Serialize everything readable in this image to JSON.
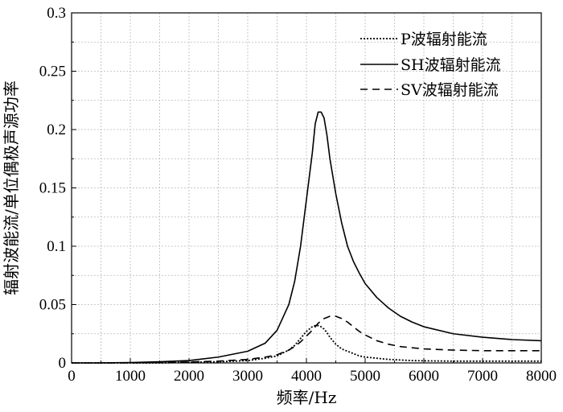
{
  "chart_data": {
    "type": "line",
    "title": "",
    "xlabel": "频率/Hz",
    "ylabel": "辐射波能流/单位偶极声源功率",
    "xlim": [
      0,
      8000
    ],
    "ylim": [
      0,
      0.3
    ],
    "x_ticks": [
      0,
      1000,
      2000,
      3000,
      4000,
      5000,
      6000,
      7000,
      8000
    ],
    "x_tick_labels": [
      "0",
      "1000",
      "2000",
      "3000",
      "4000",
      "5000",
      "6000",
      "7000",
      "8000"
    ],
    "y_ticks": [
      0,
      0.05,
      0.1,
      0.15,
      0.2,
      0.25,
      0.3
    ],
    "y_tick_labels": [
      "0",
      "0.05",
      "0.1",
      "0.15",
      "0.2",
      "0.25",
      "0.3"
    ],
    "grid": true,
    "legend_position": "top-right",
    "x": [
      0,
      500,
      1000,
      1500,
      2000,
      2500,
      3000,
      3300,
      3500,
      3700,
      3800,
      3900,
      4000,
      4100,
      4150,
      4200,
      4250,
      4300,
      4350,
      4400,
      4500,
      4600,
      4700,
      4800,
      4900,
      5000,
      5200,
      5400,
      5600,
      5800,
      6000,
      6500,
      7000,
      7500,
      8000
    ],
    "series": [
      {
        "name": "P波辐射能流",
        "style": "dotted",
        "values": [
          0,
          0,
          0,
          0,
          0.0005,
          0.001,
          0.002,
          0.004,
          0.006,
          0.011,
          0.015,
          0.021,
          0.027,
          0.031,
          0.032,
          0.032,
          0.031,
          0.029,
          0.026,
          0.022,
          0.016,
          0.012,
          0.01,
          0.008,
          0.006,
          0.005,
          0.004,
          0.003,
          0.0025,
          0.002,
          0.0018,
          0.0015,
          0.0015,
          0.0015,
          0.0015
        ]
      },
      {
        "name": "SH波辐射能流",
        "style": "solid",
        "values": [
          0,
          0,
          0.0003,
          0.001,
          0.002,
          0.005,
          0.01,
          0.017,
          0.028,
          0.05,
          0.07,
          0.1,
          0.14,
          0.18,
          0.205,
          0.215,
          0.215,
          0.21,
          0.195,
          0.175,
          0.145,
          0.12,
          0.1,
          0.087,
          0.077,
          0.068,
          0.056,
          0.047,
          0.04,
          0.035,
          0.031,
          0.025,
          0.022,
          0.02,
          0.019
        ]
      },
      {
        "name": "SV波辐射能流",
        "style": "dashed",
        "values": [
          0,
          0,
          0,
          0.0003,
          0.0008,
          0.0015,
          0.003,
          0.005,
          0.007,
          0.011,
          0.014,
          0.018,
          0.023,
          0.028,
          0.031,
          0.034,
          0.036,
          0.038,
          0.039,
          0.04,
          0.04,
          0.038,
          0.035,
          0.031,
          0.027,
          0.024,
          0.019,
          0.016,
          0.014,
          0.013,
          0.012,
          0.011,
          0.0105,
          0.0105,
          0.0105
        ]
      }
    ]
  }
}
